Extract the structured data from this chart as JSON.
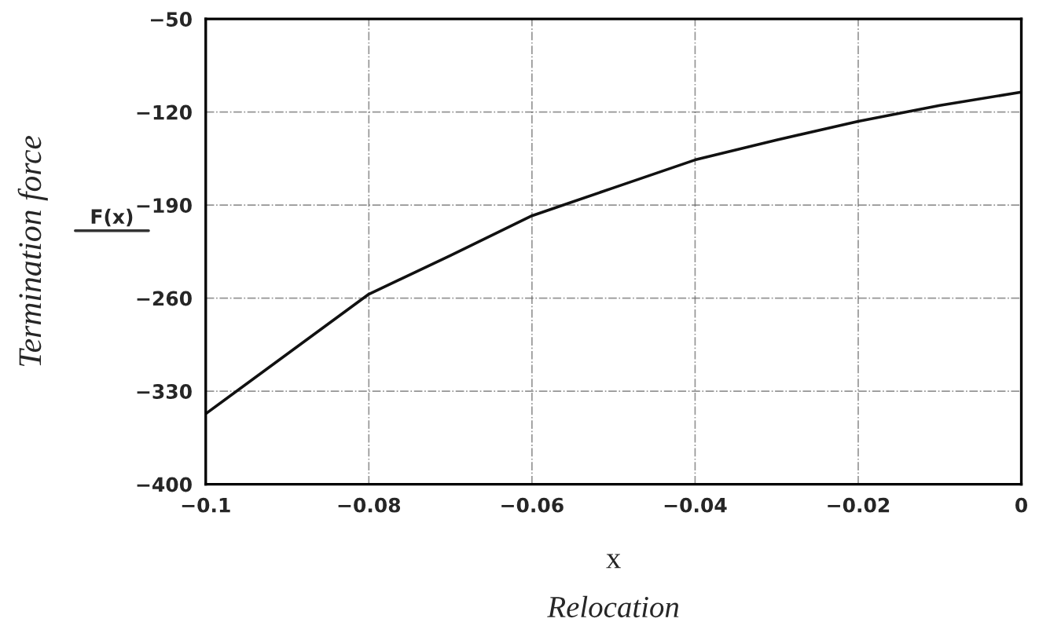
{
  "chart_data": {
    "type": "line",
    "ylabel": "Termination force",
    "xlabel": "x",
    "annotations": [
      "F(x)",
      "Relocation"
    ],
    "series": [
      {
        "color": "#111111",
        "x": [
          -0.1,
          -0.08,
          -0.07,
          -0.06,
          -0.05,
          -0.04,
          -0.03,
          -0.02,
          -0.01,
          0
        ],
        "values": [
          -347,
          -257,
          -228,
          -198,
          -177,
          -156,
          -141,
          -127,
          -115,
          -105
        ]
      }
    ],
    "xlim": [
      -0.1,
      0
    ],
    "ylim": [
      -400,
      -50
    ],
    "xticks": [
      {
        "value": -0.1,
        "label": "−0.1"
      },
      {
        "value": -0.08,
        "label": "−0.08"
      },
      {
        "value": -0.06,
        "label": "−0.06"
      },
      {
        "value": -0.04,
        "label": "−0.04"
      },
      {
        "value": -0.02,
        "label": "−0.02"
      },
      0
    ],
    "yticks": [
      {
        "value": -400,
        "label": "−400"
      },
      {
        "value": -330,
        "label": "−330"
      },
      {
        "value": -260,
        "label": "−260"
      },
      {
        "value": -190,
        "label": "−190"
      },
      {
        "value": -120,
        "label": "−120"
      },
      {
        "value": -50,
        "label": "−50"
      }
    ],
    "grid": true,
    "marker": "none",
    "line_style": "solid"
  }
}
